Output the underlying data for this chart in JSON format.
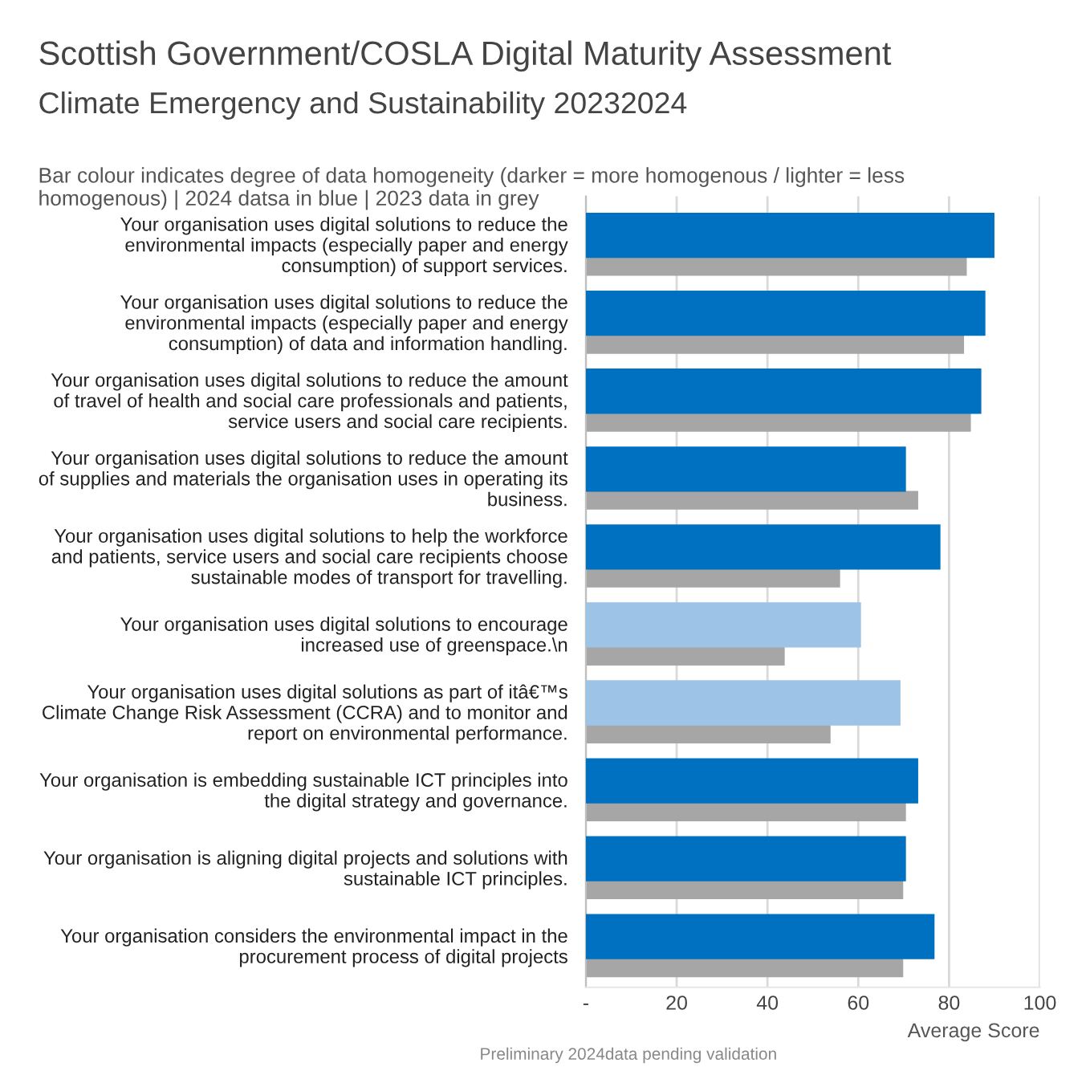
{
  "chart_data": {
    "type": "bar",
    "orientation": "horizontal",
    "title": "Scottish Government/COSLA Digital Maturity Assessment",
    "subtitle": "Climate Emergency and Sustainability 20232024",
    "annotations": [
      "Bar colour indicates degree of data homogeneity (darker = more homogenous / lighter = less\nhomogenous) | 2024 datsa in blue | 2023 data in grey",
      "Preliminary 2024data pending validation"
    ],
    "xlabel": "Average Score",
    "categories": [
      "Your organisation uses digital solutions to reduce the\nenvironmental impacts (especially paper and energy\nconsumption) of support services.",
      "Your organisation uses digital solutions to reduce the\nenvironmental impacts (especially paper and energy\nconsumption) of data and information handling.",
      "Your organisation uses digital solutions to reduce the amount\nof travel of health and social care professionals and patients,\nservice users and social care recipients.",
      "Your organisation uses digital solutions to reduce the amount\nof supplies and materials the organisation uses in operating its\nbusiness.",
      "Your organisation uses digital solutions to help the workforce\nand patients, service users and social care recipients choose\nsustainable modes of transport for travelling.",
      "Your organisation uses digital solutions to encourage\nincreased use of greenspace.\\n",
      "Your organisation uses digital solutions as part of itâ€™s\nClimate Change Risk Assessment (CCRA) and to monitor and\nreport on environmental performance.",
      "Your organisation is embedding sustainable ICT principles into\nthe digital strategy and governance.",
      "Your organisation is aligning digital projects and solutions with\nsustainable ICT principles.",
      "Your organisation considers the environmental impact in the\nprocurement process of digital projects"
    ],
    "series": [
      {
        "colors": [
          "#0070c0",
          "#0070c0",
          "#0070c0",
          "#0070c0",
          "#0070c0",
          "#9dc3e6",
          "#9dc3e6",
          "#0070c0",
          "#0070c0",
          "#0070c0"
        ],
        "values": [
          90.0,
          88.0,
          87.1,
          70.5,
          78.1,
          60.6,
          69.3,
          73.2,
          70.5,
          76.8
        ]
      },
      {
        "color": "#a6a6a6",
        "values": [
          83.9,
          83.3,
          84.8,
          73.2,
          56.0,
          43.8,
          53.9,
          70.5,
          69.9,
          69.9
        ]
      }
    ],
    "xlim": [
      0,
      100
    ],
    "xticks": [
      {
        "value": 0,
        "label": "-"
      },
      20,
      40,
      60,
      80,
      100
    ],
    "grid": "x",
    "legend": false
  }
}
